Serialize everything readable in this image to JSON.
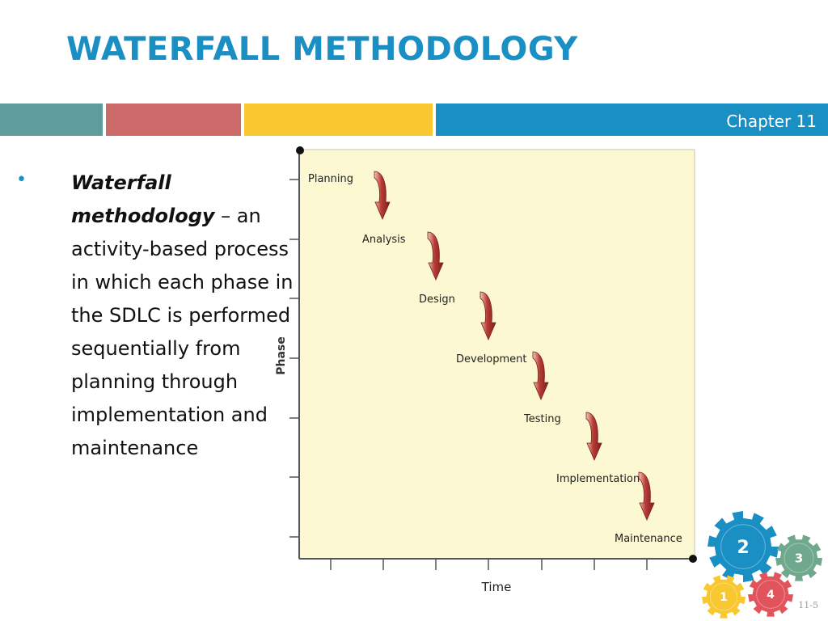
{
  "slide": {
    "title": "WATERFALL METHODOLOGY",
    "chapter": "Chapter 11",
    "bullet_term": "Waterfall methodology",
    "bullet_text": " – an activity-based process in which each phase in the SDLC is performed sequentially from planning through implementation and maintenance",
    "page_number": "11-5"
  },
  "diagram": {
    "y_axis_label": "Phase",
    "x_axis_label": "Time",
    "phases": [
      "Planning",
      "Analysis",
      "Design",
      "Development",
      "Testing",
      "Implementation",
      "Maintenance"
    ],
    "colors": {
      "panel": "#fbf8d2",
      "arrow": "#9a2a2a"
    }
  },
  "gears": [
    {
      "label": "2",
      "color": "#1a8fc4"
    },
    {
      "label": "3",
      "color": "#6fa88d"
    },
    {
      "label": "1",
      "color": "#f9c72f"
    },
    {
      "label": "4",
      "color": "#e2545b"
    }
  ],
  "colors": {
    "accent": "#1a8fc4",
    "teal": "#5f9c9c",
    "red": "#cd6b6b",
    "yellow": "#f9c72f"
  }
}
